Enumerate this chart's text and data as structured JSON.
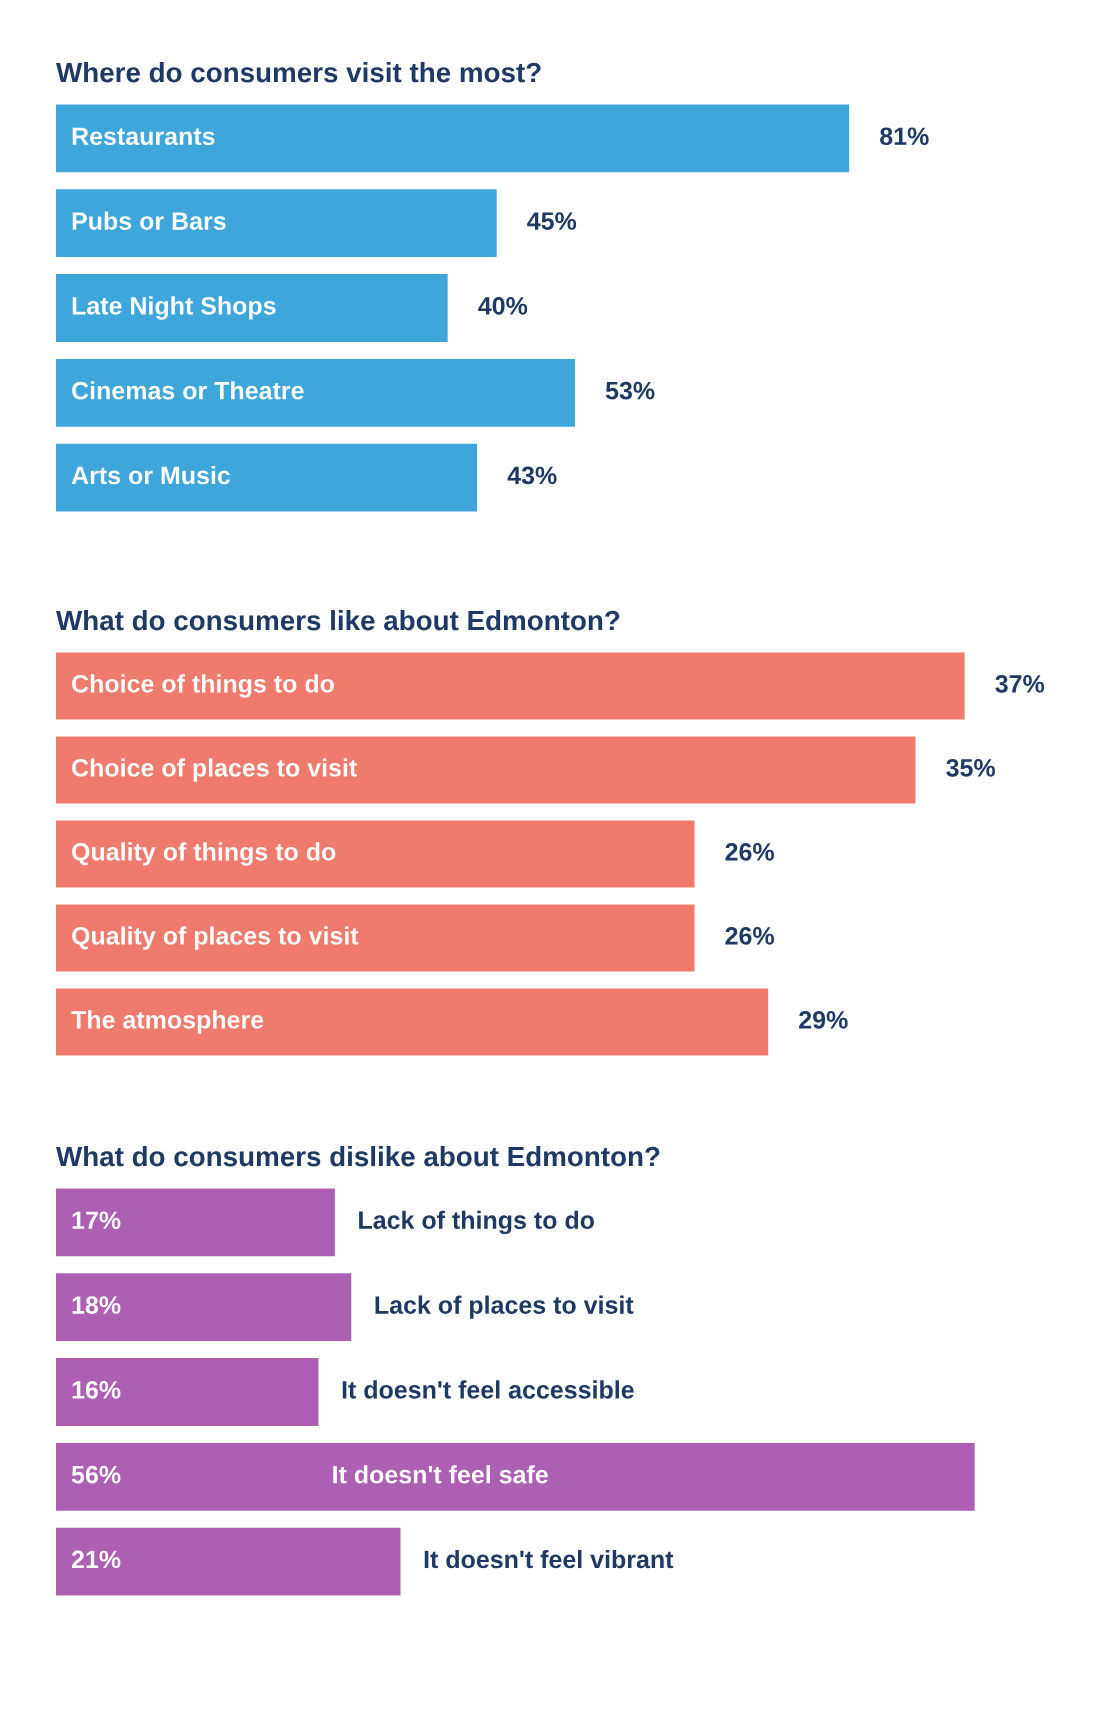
{
  "chart_data": [
    {
      "type": "bar",
      "orientation": "horizontal",
      "title": "Where do consumers visit the most?",
      "categories": [
        "Restaurants",
        "Pubs or Bars",
        "Late Night Shops",
        "Cinemas or Theatre",
        "Arts or Music"
      ],
      "values": [
        81,
        45,
        40,
        53,
        43
      ],
      "value_labels": [
        "81%",
        "45%",
        "40%",
        "53%",
        "43%"
      ],
      "color": "#3ea6da"
    },
    {
      "type": "bar",
      "orientation": "horizontal",
      "title": "What do consumers like about Edmonton?",
      "categories": [
        "Choice of things to do",
        "Choice of places to visit",
        "Quality of things to do",
        "Quality of places to visit",
        "The atmosphere"
      ],
      "values": [
        37,
        35,
        26,
        26,
        29
      ],
      "value_labels": [
        "37%",
        "35%",
        "26%",
        "26%",
        "29%"
      ],
      "color": "#ee7b6b"
    },
    {
      "type": "bar",
      "orientation": "horizontal",
      "title": "What do consumers dislike about Edmonton?",
      "categories": [
        "Lack of things to do",
        "Lack of places to visit",
        "It doesn't feel accessible",
        "It doesn't feel safe",
        "It doesn't feel vibrant"
      ],
      "values": [
        17,
        18,
        16,
        56,
        21
      ],
      "value_labels": [
        "17%",
        "18%",
        "16%",
        "56%",
        "21%"
      ],
      "color": "#ad5fb4"
    }
  ]
}
